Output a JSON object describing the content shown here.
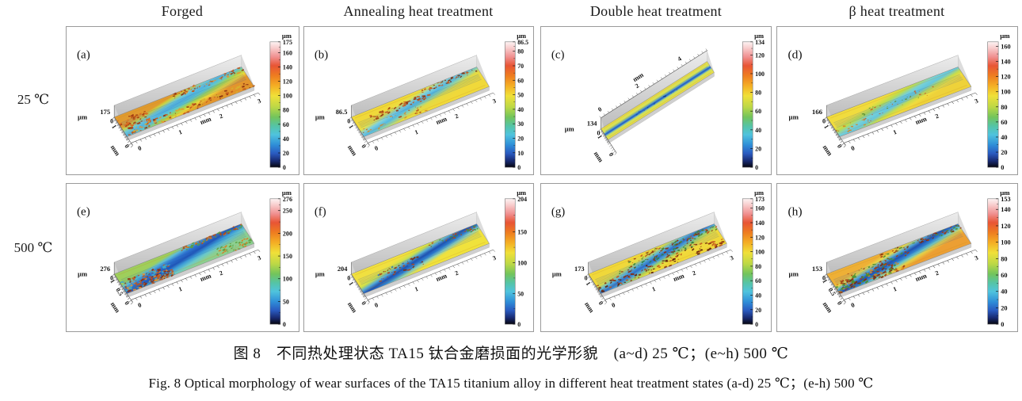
{
  "figure": {
    "caption_zh": "图 8　不同热处理状态 TA15 钛合金磨损面的光学形貌　(a~d) 25 ℃；(e~h) 500 ℃",
    "caption_en": "Fig. 8   Optical morphology of wear surfaces of the TA15 titanium alloy in different heat treatment states   (a-d) 25 ℃；(e-h) 500 ℃"
  },
  "column_headers": [
    "Forged",
    "Annealing heat treatment",
    "Double heat treatment",
    "β heat treatment"
  ],
  "row_labels": [
    "25 ℃",
    "500 ℃"
  ],
  "units": {
    "height": "µm",
    "lateral": "mm"
  },
  "colorbar_colors": [
    [
      0,
      "#fdf3f3"
    ],
    [
      0.05,
      "#f8cccc"
    ],
    [
      0.12,
      "#f09090"
    ],
    [
      0.19,
      "#e85535"
    ],
    [
      0.27,
      "#ee7d20"
    ],
    [
      0.35,
      "#f4ae24"
    ],
    [
      0.43,
      "#f0e038"
    ],
    [
      0.52,
      "#bcd846"
    ],
    [
      0.6,
      "#72c45c"
    ],
    [
      0.67,
      "#55c4a5"
    ],
    [
      0.74,
      "#4fc3dd"
    ],
    [
      0.82,
      "#2f8fd8"
    ],
    [
      0.89,
      "#2a5ac0"
    ],
    [
      0.95,
      "#182a70"
    ],
    [
      1,
      "#06060f"
    ]
  ],
  "panels": [
    {
      "label": "(a)",
      "row": "25 ℃",
      "column": "Forged",
      "z_max": "175",
      "z_min": "0",
      "orientation": "standard",
      "colorbar_ticks": [
        "175",
        "160",
        "140",
        "120",
        "100",
        "80",
        "60",
        "40",
        "20",
        "0"
      ],
      "long_axis_ticks": [
        "0",
        "1",
        "2",
        "3"
      ],
      "short_axis_ticks": [
        "1",
        "0"
      ],
      "surface_stops": [
        [
          0,
          "#e09a2e"
        ],
        [
          0.1,
          "#cdd23f"
        ],
        [
          0.26,
          "#6cc8d9"
        ],
        [
          0.4,
          "#52b2e0"
        ],
        [
          0.55,
          "#5fc6cf"
        ],
        [
          0.7,
          "#a6d44e"
        ],
        [
          0.84,
          "#eed63a"
        ],
        [
          1,
          "#e2952d"
        ]
      ],
      "speckle_zones": [
        {
          "u": [
            0,
            1
          ],
          "v": [
            0.72,
            1.0
          ],
          "n": 130,
          "size": 1.8,
          "colors": [
            "#c2571d",
            "#8a2f10",
            "#e8922c",
            "#d8b22e"
          ]
        },
        {
          "u": [
            0.45,
            1
          ],
          "v": [
            0,
            0.22
          ],
          "n": 70,
          "size": 1.6,
          "colors": [
            "#c2571d",
            "#8a2f10",
            "#e8922c"
          ]
        },
        {
          "u": [
            0,
            0.22
          ],
          "v": [
            0.2,
            0.75
          ],
          "n": 60,
          "size": 1.8,
          "colors": [
            "#d86a20",
            "#a03a12"
          ]
        }
      ]
    },
    {
      "label": "(b)",
      "row": "25 ℃",
      "column": "Annealing heat treatment",
      "z_max": "86.5",
      "z_min": "0",
      "orientation": "standard",
      "colorbar_ticks": [
        "86.5",
        "80",
        "70",
        "60",
        "50",
        "40",
        "30",
        "20",
        "10",
        "0"
      ],
      "long_axis_ticks": [
        "0",
        "1",
        "2",
        "3"
      ],
      "short_axis_ticks": [
        "1",
        "0"
      ],
      "surface_stops": [
        [
          0,
          "#f0d93a"
        ],
        [
          0.14,
          "#e4e04a"
        ],
        [
          0.3,
          "#7ed0de"
        ],
        [
          0.46,
          "#55b8e0"
        ],
        [
          0.6,
          "#8fd2a8"
        ],
        [
          0.74,
          "#e2da45"
        ],
        [
          1,
          "#f0d93a"
        ]
      ],
      "speckle_zones": [
        {
          "u": [
            0.1,
            0.58
          ],
          "v": [
            0.25,
            0.5
          ],
          "n": 55,
          "size": 1.7,
          "colors": [
            "#c75a1d",
            "#973711"
          ]
        },
        {
          "u": [
            0.55,
            1
          ],
          "v": [
            0.02,
            0.2
          ],
          "n": 45,
          "size": 1.5,
          "colors": [
            "#c75a1d",
            "#7a2d0e"
          ]
        },
        {
          "u": [
            0,
            0.5
          ],
          "v": [
            0.6,
            0.95
          ],
          "n": 35,
          "size": 1.4,
          "colors": [
            "#d88a28",
            "#b04a16"
          ]
        }
      ]
    },
    {
      "label": "(c)",
      "row": "25 ℃",
      "column": "Double heat treatment",
      "z_max": "134",
      "z_min": "0",
      "orientation": "steep",
      "colorbar_ticks": [
        "134",
        "120",
        "100",
        "80",
        "60",
        "40",
        "20",
        "0"
      ],
      "long_axis_ticks": [
        "0",
        "2",
        "4"
      ],
      "short_axis_ticks": [
        "1",
        "0"
      ],
      "surface_stops": [
        [
          0,
          "#ecdf48"
        ],
        [
          0.34,
          "#cfe05a"
        ],
        [
          0.44,
          "#55a0d8"
        ],
        [
          0.52,
          "#2458b8"
        ],
        [
          0.6,
          "#55a0d8"
        ],
        [
          0.7,
          "#cfe05a"
        ],
        [
          1,
          "#ecdf48"
        ]
      ],
      "speckle_zones": [
        {
          "u": [
            0.3,
            0.72
          ],
          "v": [
            0.42,
            0.6
          ],
          "n": 14,
          "size": 1.3,
          "colors": [
            "#123c8a",
            "#1d55b0"
          ]
        }
      ]
    },
    {
      "label": "(d)",
      "row": "25 ℃",
      "column": "β heat treatment",
      "z_max": "166",
      "z_min": "0",
      "orientation": "standard",
      "colorbar_ticks": [
        "160",
        "140",
        "120",
        "100",
        "80",
        "60",
        "40",
        "20",
        "0"
      ],
      "long_axis_ticks": [
        "0",
        "1",
        "2",
        "3"
      ],
      "short_axis_ticks": [
        "1",
        "0"
      ],
      "surface_stops": [
        [
          0,
          "#f0dc3e"
        ],
        [
          0.2,
          "#bcdc4e"
        ],
        [
          0.38,
          "#76d0d8"
        ],
        [
          0.55,
          "#66c6dc"
        ],
        [
          0.72,
          "#c6dc4e"
        ],
        [
          0.88,
          "#f0dc3e"
        ],
        [
          1,
          "#eed23a"
        ]
      ],
      "speckle_zones": [
        {
          "u": [
            0.15,
            0.8
          ],
          "v": [
            0.3,
            0.7
          ],
          "n": 30,
          "size": 1.3,
          "colors": [
            "#c75a1d",
            "#5a8f2f"
          ]
        },
        {
          "u": [
            0,
            0.3
          ],
          "v": [
            0.6,
            0.95
          ],
          "n": 25,
          "size": 1.4,
          "colors": [
            "#d8861f",
            "#c75a1d"
          ]
        }
      ]
    },
    {
      "label": "(e)",
      "row": "500 ℃",
      "column": "Forged",
      "z_max": "276",
      "z_min": "0",
      "orientation": "standard",
      "colorbar_ticks": [
        "276",
        "250",
        "200",
        "150",
        "100",
        "50",
        "0"
      ],
      "long_axis_ticks": [
        "0",
        "1",
        "2",
        "3"
      ],
      "short_axis_ticks": [
        "1",
        "0.5",
        "0"
      ],
      "surface_stops": [
        [
          0,
          "#9ecf5c"
        ],
        [
          0.13,
          "#5ebcd8"
        ],
        [
          0.3,
          "#2e74d0"
        ],
        [
          0.5,
          "#2055b8"
        ],
        [
          0.66,
          "#3f9fd8"
        ],
        [
          0.82,
          "#6cc9c9"
        ],
        [
          1,
          "#8ccf8f"
        ]
      ],
      "speckle_zones": [
        {
          "u": [
            0,
            0.38
          ],
          "v": [
            0.45,
            1.0
          ],
          "n": 160,
          "size": 2.0,
          "colors": [
            "#c2571d",
            "#8a2f10",
            "#e8922c",
            "#3fa8c8"
          ]
        },
        {
          "u": [
            0.5,
            1
          ],
          "v": [
            0,
            0.18
          ],
          "n": 70,
          "size": 1.6,
          "colors": [
            "#d87a20",
            "#5a9f3f",
            "#b04a16"
          ]
        },
        {
          "u": [
            0.72,
            1
          ],
          "v": [
            0.6,
            1.0
          ],
          "n": 50,
          "size": 1.5,
          "colors": [
            "#d87a20",
            "#5a9f3f"
          ]
        }
      ]
    },
    {
      "label": "(f)",
      "row": "500 ℃",
      "column": "Annealing heat treatment",
      "z_max": "204",
      "z_min": "0",
      "orientation": "standard",
      "colorbar_ticks": [
        "204",
        "150",
        "100",
        "50",
        "0"
      ],
      "long_axis_ticks": [
        "0",
        "1",
        "2",
        "3"
      ],
      "short_axis_ticks": [
        "1",
        "0"
      ],
      "surface_stops": [
        [
          0,
          "#f0e040"
        ],
        [
          0.17,
          "#cfe04a"
        ],
        [
          0.32,
          "#55aad8"
        ],
        [
          0.47,
          "#1e50b0"
        ],
        [
          0.6,
          "#2f7fd0"
        ],
        [
          0.74,
          "#8fd2b8"
        ],
        [
          0.88,
          "#eee040"
        ],
        [
          1,
          "#f0e23c"
        ]
      ],
      "speckle_zones": [
        {
          "u": [
            0.15,
            0.5
          ],
          "v": [
            0.35,
            0.78
          ],
          "n": 55,
          "size": 1.6,
          "colors": [
            "#b24515",
            "#7a2d0e",
            "#2f6fbf"
          ]
        },
        {
          "u": [
            0.6,
            1
          ],
          "v": [
            0.05,
            0.25
          ],
          "n": 40,
          "size": 1.4,
          "colors": [
            "#b24515",
            "#4a8f2f"
          ]
        }
      ]
    },
    {
      "label": "(g)",
      "row": "500 ℃",
      "column": "Double heat treatment",
      "z_max": "173",
      "z_min": "0",
      "orientation": "standard",
      "colorbar_ticks": [
        "173",
        "160",
        "140",
        "120",
        "100",
        "80",
        "60",
        "40",
        "20",
        "0"
      ],
      "long_axis_ticks": [
        "0",
        "1",
        "2",
        "3"
      ],
      "short_axis_ticks": [
        "1",
        "0"
      ],
      "surface_stops": [
        [
          0,
          "#f0d83a"
        ],
        [
          0.14,
          "#d6d84a"
        ],
        [
          0.3,
          "#5fb8d8"
        ],
        [
          0.46,
          "#2f6fc8"
        ],
        [
          0.58,
          "#4fa8d8"
        ],
        [
          0.7,
          "#a8d45f"
        ],
        [
          0.84,
          "#f0dc3c"
        ],
        [
          1,
          "#f0d83a"
        ]
      ],
      "speckle_zones": [
        {
          "u": [
            0,
            1
          ],
          "v": [
            0.6,
            1.0
          ],
          "n": 120,
          "size": 1.7,
          "colors": [
            "#8a2f10",
            "#5f1f0a",
            "#c2571d"
          ]
        },
        {
          "u": [
            0.3,
            1
          ],
          "v": [
            0.05,
            0.3
          ],
          "n": 90,
          "size": 1.6,
          "colors": [
            "#8a2f10",
            "#4a7f2f",
            "#c2571d"
          ]
        },
        {
          "u": [
            0.2,
            0.8
          ],
          "v": [
            0.35,
            0.6
          ],
          "n": 60,
          "size": 1.5,
          "colors": [
            "#2f7f3f",
            "#8a2f10"
          ]
        }
      ]
    },
    {
      "label": "(h)",
      "row": "500 ℃",
      "column": "β heat treatment",
      "z_max": "153",
      "z_min": "0",
      "orientation": "standard",
      "colorbar_ticks": [
        "153",
        "140",
        "120",
        "100",
        "80",
        "60",
        "40",
        "20",
        "0"
      ],
      "long_axis_ticks": [
        "0",
        "1",
        "2",
        "3"
      ],
      "short_axis_ticks": [
        "1",
        "0.5",
        "0"
      ],
      "surface_stops": [
        [
          0,
          "#eeb036"
        ],
        [
          0.14,
          "#e6d84a"
        ],
        [
          0.28,
          "#55aad8"
        ],
        [
          0.44,
          "#2050b0"
        ],
        [
          0.57,
          "#2f7fd0"
        ],
        [
          0.7,
          "#6cc9c9"
        ],
        [
          0.83,
          "#e6cf46"
        ],
        [
          1,
          "#ec9f33"
        ]
      ],
      "speckle_zones": [
        {
          "u": [
            0,
            0.5
          ],
          "v": [
            0.5,
            1.0
          ],
          "n": 140,
          "size": 1.9,
          "colors": [
            "#7a2d0e",
            "#a03a12",
            "#d8861f",
            "#4a8f2f"
          ]
        },
        {
          "u": [
            0.4,
            1
          ],
          "v": [
            0.02,
            0.25
          ],
          "n": 70,
          "size": 1.5,
          "colors": [
            "#a03a12",
            "#7a2d0e",
            "#4a8f2f"
          ]
        },
        {
          "u": [
            0.1,
            0.6
          ],
          "v": [
            0.3,
            0.5
          ],
          "n": 30,
          "size": 1.4,
          "colors": [
            "#4a8f2f",
            "#a03a12"
          ]
        }
      ]
    }
  ]
}
